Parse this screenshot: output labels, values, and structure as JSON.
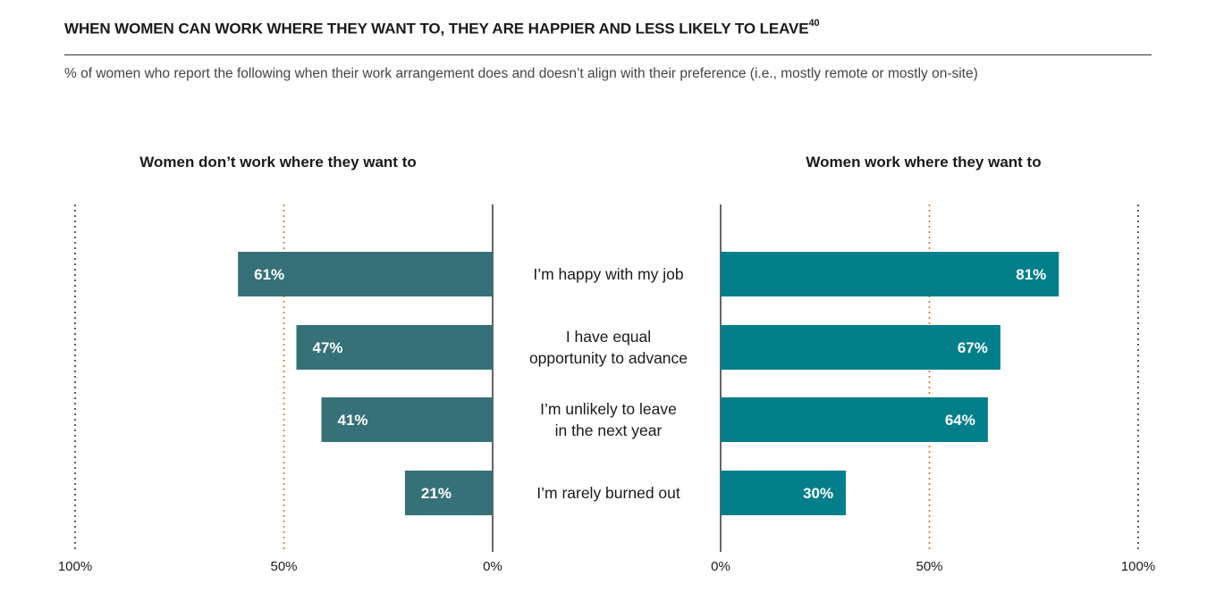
{
  "title": "WHEN WOMEN CAN WORK WHERE THEY WANT TO, THEY ARE HAPPIER AND LESS LIKELY TO LEAVE",
  "title_footnote": "40",
  "subtitle": "% of women who report the following when their work arrangement does and doesn’t align with their preference (i.e., mostly remote or mostly on-site)",
  "colors": {
    "left_bar": "#367177",
    "right_bar": "#027f8a",
    "reference_50": "#d4731e",
    "reference_100": "#333333"
  },
  "chart_data": {
    "type": "bar",
    "orientation": "horizontal-butterfly",
    "categories": [
      [
        "I’m happy with my job"
      ],
      [
        "I have equal",
        "opportunity to advance"
      ],
      [
        "I’m unlikely to leave",
        "in the next year"
      ],
      [
        "I’m rarely burned out"
      ]
    ],
    "series": [
      {
        "name": "Women don’t work where they want to",
        "side": "left",
        "values": [
          61,
          47,
          41,
          21
        ],
        "labels": [
          "61%",
          "47%",
          "41%",
          "21%"
        ]
      },
      {
        "name": "Women work where they want to",
        "side": "right",
        "values": [
          81,
          67,
          64,
          30
        ],
        "labels": [
          "81%",
          "67%",
          "64%",
          "30%"
        ]
      }
    ],
    "xlim": [
      0,
      100
    ],
    "ticks": [
      0,
      50,
      100
    ],
    "tick_labels_left": [
      "100%",
      "50%",
      "0%"
    ],
    "tick_labels_right": [
      "0%",
      "50%",
      "100%"
    ],
    "reference_lines": [
      50,
      100
    ]
  }
}
